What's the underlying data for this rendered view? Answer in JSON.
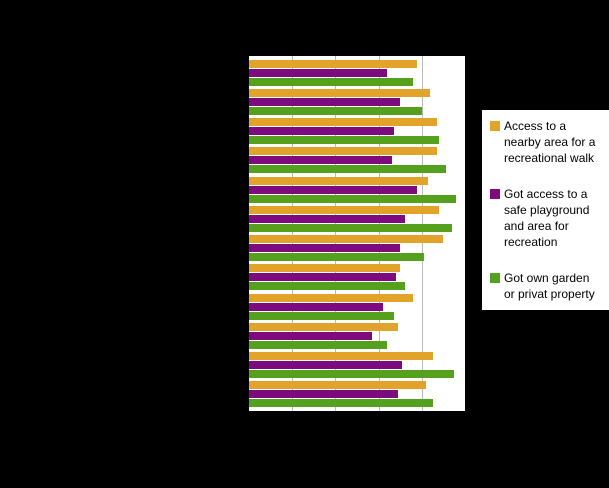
{
  "background_color": "#000000",
  "plot": {
    "background": "#ffffff",
    "border_color": "#000000",
    "gridline_color": "#b9b9b9"
  },
  "chart_data": {
    "type": "bar",
    "orientation": "horizontal",
    "title": "",
    "xlabel": "",
    "ylabel": "",
    "xlim": [
      0,
      100
    ],
    "grid": true,
    "grid_interval": 20,
    "legend_position": "right",
    "categories": [
      "",
      "",
      "",
      "",
      "",
      "",
      "",
      "",
      "",
      "",
      "",
      ""
    ],
    "series": [
      {
        "name": "Access to a nearby area for a recreational walk",
        "color": "#E2A32B",
        "values": [
          78,
          84,
          87,
          87,
          83,
          88,
          90,
          70,
          76,
          69,
          85,
          82
        ]
      },
      {
        "name": "Got access to a safe playground and area for recreation",
        "color": "#7D0B7D",
        "values": [
          64,
          70,
          67,
          66,
          78,
          72,
          70,
          68,
          62,
          57,
          71,
          69
        ]
      },
      {
        "name": "Got own garden or privat property",
        "color": "#55A11E",
        "values": [
          76,
          80,
          88,
          91,
          96,
          94,
          81,
          72,
          67,
          64,
          95,
          85
        ]
      }
    ]
  },
  "legend": {
    "items": [
      {
        "label": "Access to a nearby area for a recreational walk"
      },
      {
        "label": "Got access to a safe playground and area for recreation"
      },
      {
        "label": "Got own garden or privat property"
      }
    ]
  }
}
